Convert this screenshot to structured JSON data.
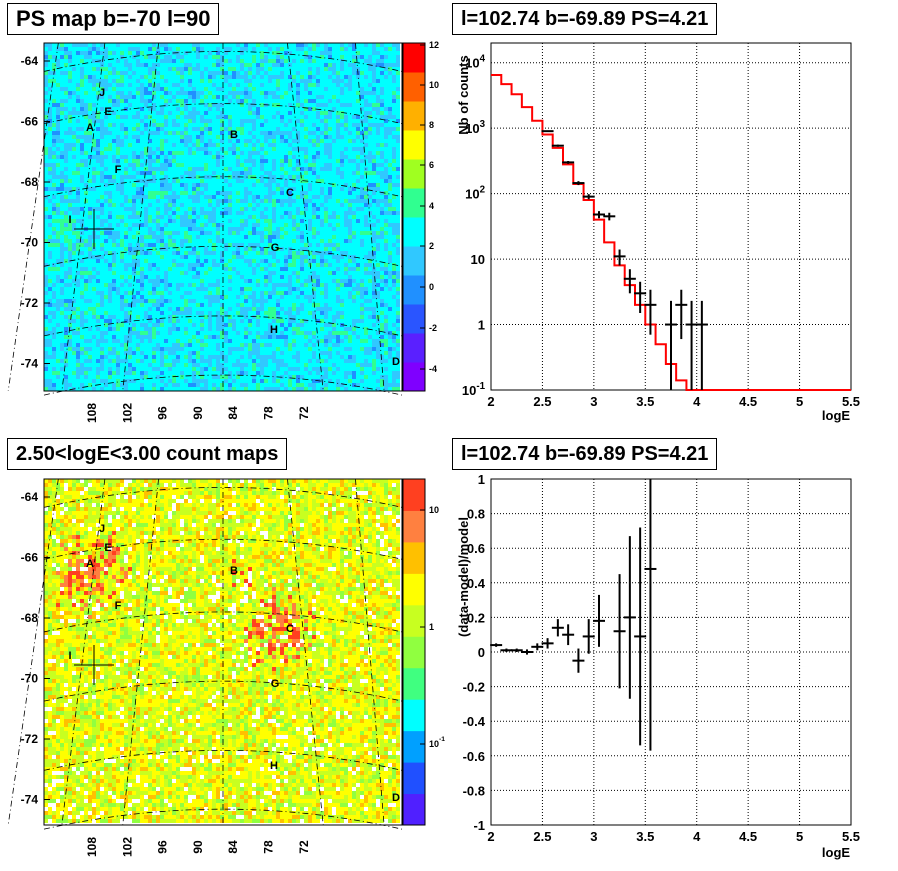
{
  "panels": {
    "ps_map_title": "PS map b=-70 l=90",
    "count_map_title": "2.50<logE<3.00 count maps",
    "spectrum_title": "l=102.74 b=-69.89 PS=4.21",
    "residual_title": "l=102.74 b=-69.89 PS=4.21"
  },
  "colors": {
    "model_line": "#ff0000",
    "data": "#000000",
    "grid": "#000000"
  },
  "chart_data": [
    {
      "type": "heatmap",
      "title": "PS map b=-70 l=90",
      "ytick_labels": [
        "-64",
        "-66",
        "-68",
        "-70",
        "-72",
        "-74"
      ],
      "xtick_labels": [
        "108",
        "102",
        "96",
        "90",
        "84",
        "78",
        "72"
      ],
      "colorbar_ticks": [
        "12",
        "10",
        "8",
        "6",
        "4",
        "2",
        "0",
        "-2",
        "-4"
      ],
      "colorbar_range": [
        -5,
        12
      ],
      "sources": [
        "J",
        "E",
        "A",
        "B",
        "F",
        "C",
        "I",
        "G",
        "H",
        "D"
      ]
    },
    {
      "type": "line",
      "title": "l=102.74 b=-69.89 PS=4.21",
      "xlabel": "logE",
      "ylabel": "Nb of counts",
      "xlim": [
        2,
        5.5
      ],
      "ylim": [
        0.1,
        20000
      ],
      "y_scale": "log",
      "grid": true,
      "xtick_labels": [
        "2",
        "2.5",
        "3",
        "3.5",
        "4",
        "4.5",
        "5",
        "5.5"
      ],
      "ytick_labels": [
        "10^-1",
        "1",
        "10",
        "10^2",
        "10^3",
        "10^4"
      ],
      "model_step": {
        "edges": [
          2.0,
          2.1,
          2.2,
          2.3,
          2.4,
          2.5,
          2.6,
          2.7,
          2.8,
          2.9,
          3.0,
          3.1,
          3.2,
          3.3,
          3.4,
          3.5,
          3.6,
          3.7,
          3.8,
          3.9,
          4.0,
          5.5
        ],
        "values": [
          6500,
          4700,
          3300,
          2100,
          1300,
          800,
          500,
          280,
          140,
          80,
          40,
          18,
          8,
          4,
          2,
          1,
          0.5,
          0.25,
          0.14,
          0.1,
          0.1
        ]
      },
      "data_points": [
        {
          "x": 2.55,
          "y": 900,
          "lo": 880,
          "hi": 920
        },
        {
          "x": 2.65,
          "y": 540,
          "lo": 520,
          "hi": 560
        },
        {
          "x": 2.75,
          "y": 300,
          "lo": 285,
          "hi": 315
        },
        {
          "x": 2.85,
          "y": 145,
          "lo": 135,
          "hi": 155
        },
        {
          "x": 2.95,
          "y": 90,
          "lo": 82,
          "hi": 98
        },
        {
          "x": 3.05,
          "y": 48,
          "lo": 42,
          "hi": 54
        },
        {
          "x": 3.15,
          "y": 45,
          "lo": 39,
          "hi": 51
        },
        {
          "x": 3.25,
          "y": 11,
          "lo": 8,
          "hi": 14
        },
        {
          "x": 3.35,
          "y": 5,
          "lo": 3,
          "hi": 7
        },
        {
          "x": 3.45,
          "y": 3,
          "lo": 1.5,
          "hi": 4.5
        },
        {
          "x": 3.55,
          "y": 2,
          "lo": 0.7,
          "hi": 3.4
        },
        {
          "x": 3.75,
          "y": 1,
          "lo": 0.1,
          "hi": 2.3
        },
        {
          "x": 3.85,
          "y": 2,
          "lo": 0.6,
          "hi": 3.4
        },
        {
          "x": 3.95,
          "y": 1,
          "lo": 0.1,
          "hi": 2.3
        },
        {
          "x": 4.05,
          "y": 1,
          "lo": 0.1,
          "hi": 2.3
        }
      ]
    },
    {
      "type": "heatmap",
      "title": "2.50<logE<3.00 count maps",
      "ytick_labels": [
        "-64",
        "-66",
        "-68",
        "-70",
        "-72",
        "-74"
      ],
      "xtick_labels": [
        "108",
        "102",
        "96",
        "90",
        "84",
        "78",
        "72"
      ],
      "colorbar_ticks": [
        "10",
        "1",
        "10^-1"
      ],
      "colorbar_scale": "log",
      "sources": [
        "J",
        "E",
        "A",
        "B",
        "F",
        "C",
        "I",
        "G",
        "H",
        "D"
      ]
    },
    {
      "type": "scatter",
      "title": "l=102.74 b=-69.89 PS=4.21",
      "xlabel": "logE",
      "ylabel": "(data-model)/model",
      "xlim": [
        2,
        5.5
      ],
      "ylim": [
        -1,
        1
      ],
      "grid": true,
      "xtick_labels": [
        "2",
        "2.5",
        "3",
        "3.5",
        "4",
        "4.5",
        "5",
        "5.5"
      ],
      "ytick_labels": [
        "-1",
        "-0.8",
        "-0.6",
        "-0.4",
        "-0.2",
        "0",
        "0.2",
        "0.4",
        "0.6",
        "0.8",
        "1"
      ],
      "data_points": [
        {
          "x": 2.05,
          "y": 0.04,
          "err": 0.01
        },
        {
          "x": 2.15,
          "y": 0.01,
          "err": 0.01
        },
        {
          "x": 2.25,
          "y": 0.01,
          "err": 0.01
        },
        {
          "x": 2.35,
          "y": 0.0,
          "err": 0.015
        },
        {
          "x": 2.45,
          "y": 0.03,
          "err": 0.02
        },
        {
          "x": 2.55,
          "y": 0.05,
          "err": 0.03
        },
        {
          "x": 2.65,
          "y": 0.14,
          "err": 0.05
        },
        {
          "x": 2.75,
          "y": 0.1,
          "err": 0.06
        },
        {
          "x": 2.85,
          "y": -0.05,
          "err": 0.07
        },
        {
          "x": 2.95,
          "y": 0.09,
          "err": 0.1
        },
        {
          "x": 3.05,
          "y": 0.18,
          "err": 0.15
        },
        {
          "x": 3.25,
          "y": 0.12,
          "err": 0.33
        },
        {
          "x": 3.35,
          "y": 0.2,
          "err": 0.47
        },
        {
          "x": 3.45,
          "y": 0.09,
          "err": 0.63
        },
        {
          "x": 3.55,
          "y": 0.48,
          "err": 1.05
        }
      ]
    }
  ]
}
